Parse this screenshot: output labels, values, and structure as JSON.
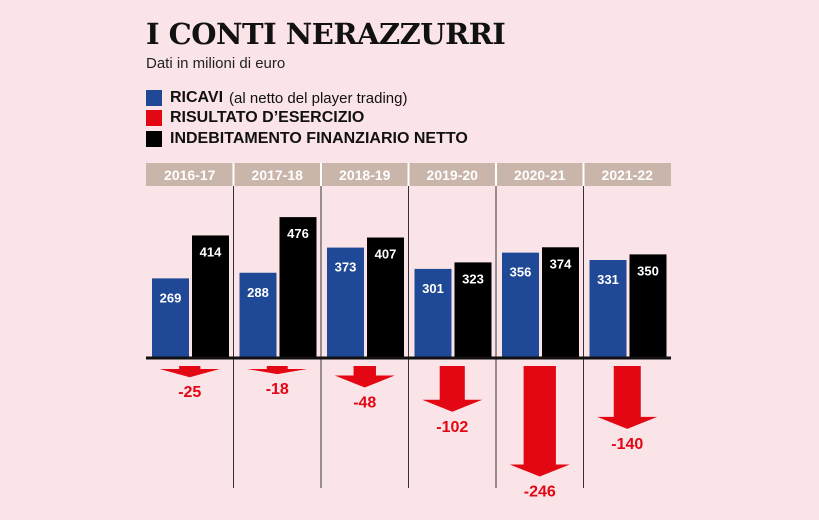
{
  "title": "I CONTI NERAZZURRI",
  "subtitle": "Dati in milioni di euro",
  "legend": [
    {
      "name": "RICAVI",
      "note": "(al netto del player trading)",
      "color": "#1f4896"
    },
    {
      "name": "RISULTATO D’ESERCIZIO",
      "note": "",
      "color": "#e30613"
    },
    {
      "name": "INDEBITAMENTO FINANZIARIO NETTO",
      "note": "",
      "color": "#000000"
    }
  ],
  "chart_data": {
    "type": "bar",
    "categories": [
      "2016-17",
      "2017-18",
      "2018-19",
      "2019-20",
      "2020-21",
      "2021-22"
    ],
    "series": [
      {
        "name": "RICAVI",
        "values": [
          269,
          288,
          373,
          301,
          356,
          331
        ],
        "color": "#1f4896"
      },
      {
        "name": "INDEBITAMENTO FINANZIARIO NETTO",
        "values": [
          414,
          476,
          407,
          323,
          374,
          350
        ],
        "color": "#000000"
      },
      {
        "name": "RISULTATO D’ESERCIZIO",
        "values": [
          -25,
          -18,
          -48,
          -102,
          -246,
          -140
        ],
        "color": "#e30613"
      }
    ],
    "value_labels": {
      "RICAVI": [
        "269",
        "288",
        "373",
        "301",
        "356",
        "331"
      ],
      "INDEBITAMENTO FINANZIARIO NETTO": [
        "414",
        "476",
        "407",
        "323",
        "374",
        "350"
      ],
      "RISULTATO D’ESERCIZIO": [
        "-25",
        "-18",
        "-48",
        "-102",
        "-246",
        "-140"
      ]
    },
    "header_color": "#c9b5aa",
    "grid": false
  }
}
